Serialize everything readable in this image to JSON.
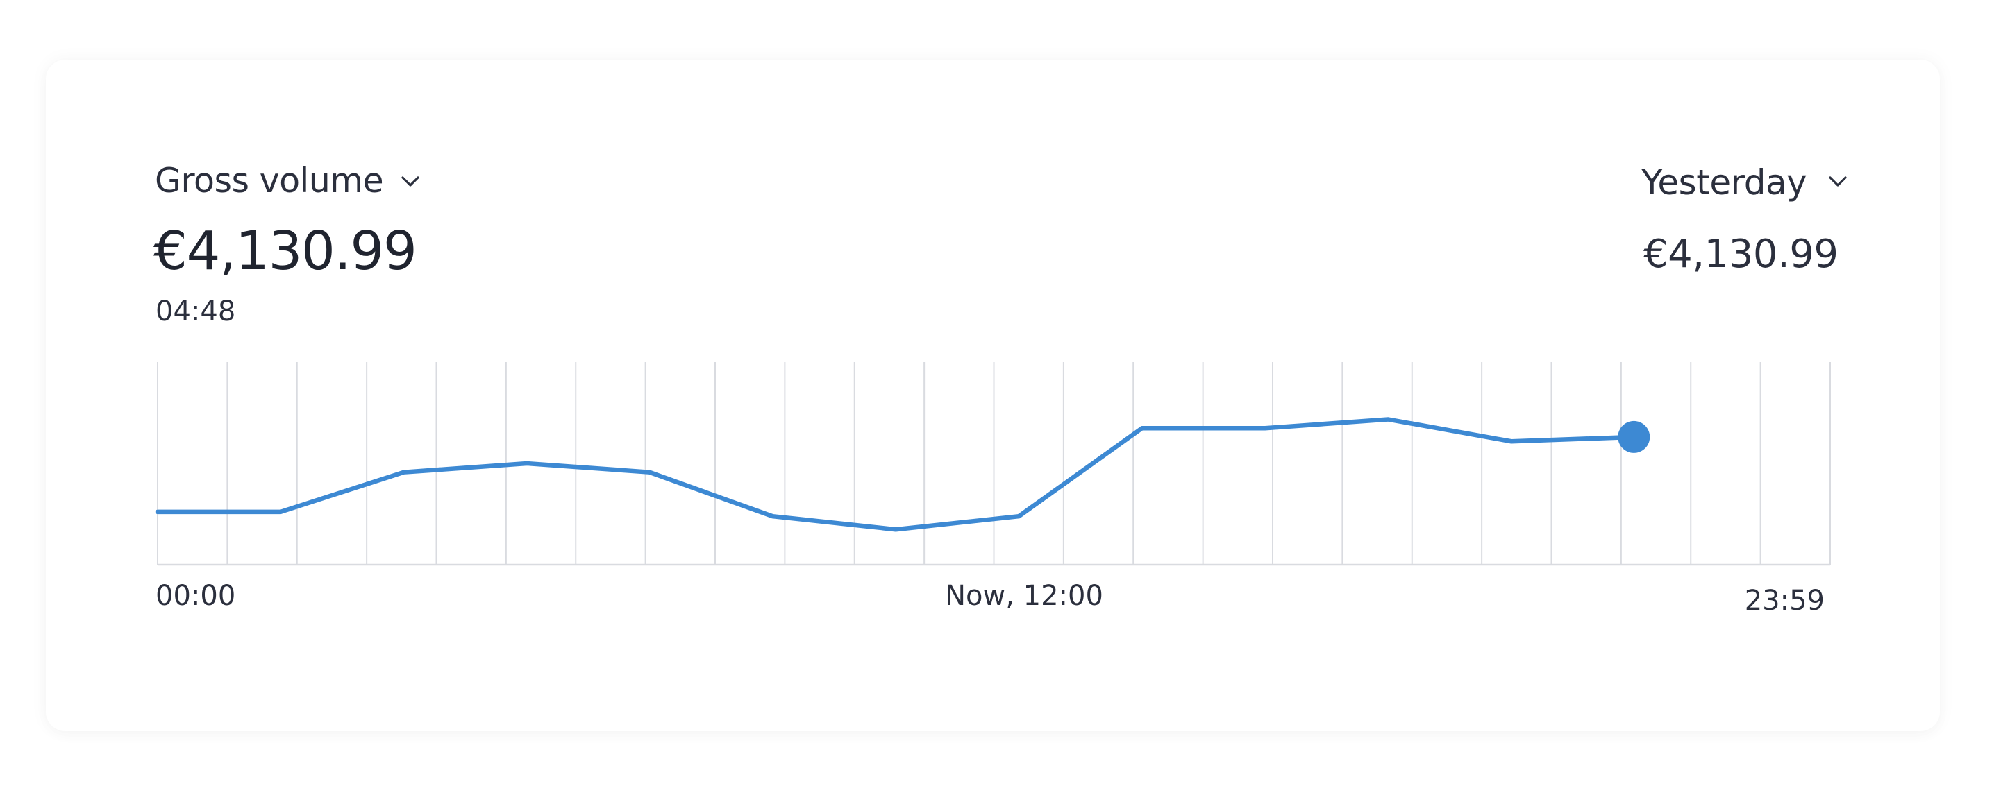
{
  "header": {
    "metric_label": "Gross volume",
    "metric_value": "€4,130.99",
    "time_label": "04:48",
    "period_label": "Yesterday",
    "compare_value": "€4,130.99"
  },
  "icons": {
    "metric_dropdown": "chevron-down-icon",
    "period_dropdown": "chevron-down-icon"
  },
  "colors": {
    "line": "#3d89d3",
    "grid": "#d9dbe0",
    "text": "#2b2f3d"
  },
  "chart_data": {
    "type": "line",
    "x_ticks": [
      "00:00",
      "Now, 12:00",
      "23:59"
    ],
    "x": [
      0,
      2.12,
      4.24,
      6.36,
      8.47,
      10.59,
      12.71,
      14.83,
      16.95,
      19.07,
      21.19,
      23.31,
      25.42
    ],
    "values": [
      12,
      12,
      21,
      23,
      21,
      11,
      8,
      11,
      31,
      31,
      33,
      28,
      29
    ],
    "xlim": [
      0,
      28.8
    ],
    "ylim": [
      0,
      46
    ],
    "grid_lines": 25,
    "grid": true,
    "highlight_last_point": true
  }
}
